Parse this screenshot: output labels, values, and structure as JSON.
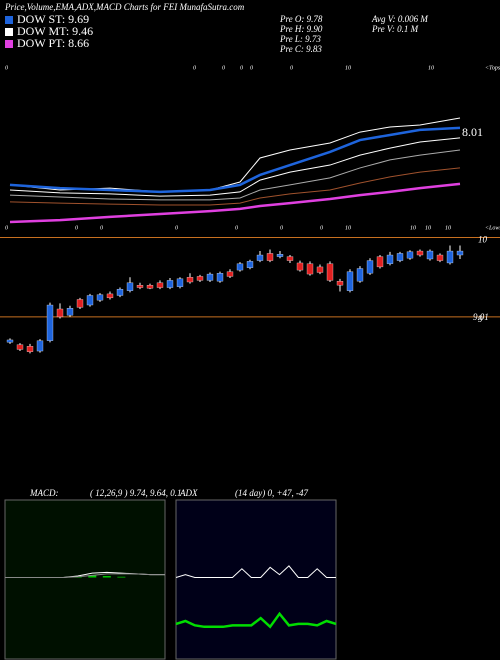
{
  "header": {
    "title": "Price,Volume,EMA,ADX,MACD Charts for FEI MunafaSutra.com",
    "stats": [
      "Pre  O: 9.78",
      "Pre  H: 9.90",
      "Pre  L: 9.73",
      "Pre  C: 9.83",
      "Avg V: 0.006  M",
      "Pre  V: 0.1  M"
    ]
  },
  "chart_data": [
    {
      "type": "line",
      "x": [
        0,
        5,
        10,
        15,
        20,
        23,
        25,
        28,
        32,
        35,
        38,
        41,
        45
      ],
      "xlim": [
        0,
        45
      ],
      "ylim": [
        5,
        10
      ],
      "annotation": "8.01",
      "top_labels": [
        "0",
        "0",
        "0",
        "0",
        "0",
        "0",
        "10",
        "10",
        "<Tops"
      ],
      "bottom_labels": [
        "0",
        "0",
        "0",
        "0",
        "0",
        "0",
        "0",
        "10",
        "10",
        "10",
        "10",
        "<Lows"
      ],
      "series": [
        {
          "color": "#ffffff",
          "values": [
            6.41,
            6.25,
            6.31,
            6.19,
            6.25,
            6.5,
            7.25,
            7.5,
            7.72,
            8.06,
            8.22,
            8.28,
            8.5
          ]
        },
        {
          "name": "DOW ST: 9.69",
          "color": "#1e64dc",
          "values": [
            6.41,
            6.31,
            6.25,
            6.19,
            6.25,
            6.41,
            6.72,
            7.03,
            7.44,
            7.81,
            7.97,
            8.13,
            8.19
          ]
        },
        {
          "name": "DOW MT: 9.46",
          "color": "#ffffff",
          "values": [
            6.25,
            6.16,
            6.13,
            6.06,
            6.09,
            6.19,
            6.56,
            6.81,
            7.03,
            7.34,
            7.56,
            7.75,
            7.88
          ]
        },
        {
          "color": "#aaaaaa",
          "values": [
            6.09,
            6.03,
            5.97,
            5.94,
            5.94,
            6.0,
            6.25,
            6.41,
            6.63,
            6.94,
            7.19,
            7.34,
            7.5
          ]
        },
        {
          "color": "#a0522d",
          "values": [
            5.88,
            5.84,
            5.81,
            5.78,
            5.78,
            5.84,
            6.0,
            6.13,
            6.25,
            6.47,
            6.66,
            6.81,
            6.94
          ]
        },
        {
          "name": "DOW PT: 8.66",
          "color": "#e040e0",
          "values": [
            5.25,
            5.31,
            5.41,
            5.5,
            5.59,
            5.66,
            5.75,
            5.84,
            5.97,
            6.09,
            6.19,
            6.31,
            6.44
          ]
        }
      ]
    },
    {
      "type": "candlestick",
      "xlim": [
        0,
        45
      ],
      "ylim": [
        8.18,
        10.07
      ],
      "yticks": [
        9,
        10
      ],
      "annotation": "9.01",
      "up_color": "#1e64dc",
      "down_color": "#e02020",
      "grid_color": "#c87020",
      "ohlc": [
        [
          8.68,
          8.73,
          8.66,
          8.71
        ],
        [
          8.65,
          8.67,
          8.57,
          8.59
        ],
        [
          8.63,
          8.66,
          8.54,
          8.56
        ],
        [
          8.57,
          8.72,
          8.55,
          8.7
        ],
        [
          8.7,
          9.18,
          8.68,
          9.15
        ],
        [
          9.1,
          9.17,
          8.98,
          9.0
        ],
        [
          9.02,
          9.14,
          9.0,
          9.11
        ],
        [
          9.22,
          9.24,
          9.1,
          9.12
        ],
        [
          9.15,
          9.29,
          9.13,
          9.27
        ],
        [
          9.21,
          9.3,
          9.19,
          9.28
        ],
        [
          9.29,
          9.32,
          9.22,
          9.24
        ],
        [
          9.27,
          9.37,
          9.25,
          9.35
        ],
        [
          9.33,
          9.5,
          9.31,
          9.43
        ],
        [
          9.4,
          9.43,
          9.35,
          9.37
        ],
        [
          9.4,
          9.42,
          9.35,
          9.36
        ],
        [
          9.43,
          9.46,
          9.35,
          9.37
        ],
        [
          9.37,
          9.49,
          9.35,
          9.46
        ],
        [
          9.38,
          9.5,
          9.36,
          9.48
        ],
        [
          9.5,
          9.55,
          9.42,
          9.44
        ],
        [
          9.51,
          9.53,
          9.44,
          9.46
        ],
        [
          9.46,
          9.56,
          9.44,
          9.54
        ],
        [
          9.45,
          9.57,
          9.43,
          9.55
        ],
        [
          9.57,
          9.6,
          9.49,
          9.51
        ],
        [
          9.59,
          9.69,
          9.57,
          9.67
        ],
        [
          9.62,
          9.72,
          9.6,
          9.7
        ],
        [
          9.71,
          9.83,
          9.69,
          9.78
        ],
        [
          9.8,
          9.85,
          9.69,
          9.71
        ],
        [
          9.76,
          9.83,
          9.74,
          9.79
        ],
        [
          9.76,
          9.78,
          9.68,
          9.71
        ],
        [
          9.68,
          9.71,
          9.57,
          9.59
        ],
        [
          9.67,
          9.7,
          9.52,
          9.54
        ],
        [
          9.63,
          9.66,
          9.54,
          9.56
        ],
        [
          9.67,
          9.7,
          9.44,
          9.46
        ],
        [
          9.45,
          9.48,
          9.32,
          9.4
        ],
        [
          9.33,
          9.6,
          9.31,
          9.57
        ],
        [
          9.45,
          9.64,
          9.43,
          9.61
        ],
        [
          9.55,
          9.74,
          9.53,
          9.71
        ],
        [
          9.76,
          9.78,
          9.61,
          9.63
        ],
        [
          9.67,
          9.82,
          9.65,
          9.78
        ],
        [
          9.71,
          9.82,
          9.69,
          9.8
        ],
        [
          9.74,
          9.84,
          9.72,
          9.82
        ],
        [
          9.83,
          9.85,
          9.76,
          9.78
        ],
        [
          9.73,
          9.85,
          9.71,
          9.83
        ],
        [
          9.78,
          9.8,
          9.69,
          9.71
        ],
        [
          9.68,
          9.9,
          9.66,
          9.83
        ],
        [
          9.78,
          9.9,
          9.73,
          9.83
        ]
      ]
    },
    {
      "type": "line",
      "title": "MACD:",
      "subtitle": "( 12,26,9 ) 9.74, 9.64, 0.1",
      "ylim": [
        -1,
        1
      ],
      "series": [
        {
          "color": "#ffffff",
          "values": [
            0,
            0,
            0,
            0,
            0,
            0.02,
            0.06,
            0.07,
            0.06,
            0.05,
            0.04,
            0.04
          ]
        },
        {
          "color": "#888888",
          "values": [
            0,
            0,
            0,
            0,
            0,
            0.01,
            0.03,
            0.05,
            0.05,
            0.05,
            0.04,
            0.04
          ]
        }
      ],
      "bars": {
        "color": "#00cc00",
        "values": [
          0,
          0,
          0,
          0,
          0,
          0.01,
          0.03,
          0.02,
          0.01,
          0,
          0,
          0
        ]
      }
    },
    {
      "type": "line",
      "title": "ADX",
      "subtitle": "(14 day) 0, +47, -47",
      "ylim": [
        0,
        100
      ],
      "series": [
        {
          "color": "#ffffff",
          "values": [
            50,
            52,
            50,
            50,
            50,
            50,
            50,
            56,
            50,
            50,
            57,
            52,
            58,
            50,
            50,
            56,
            50,
            50
          ]
        },
        {
          "color": "#00dd00",
          "values": [
            18,
            20,
            17,
            16,
            16,
            16,
            17,
            17,
            17,
            22,
            16,
            25,
            17,
            18,
            18,
            17,
            20,
            18
          ]
        }
      ]
    }
  ]
}
